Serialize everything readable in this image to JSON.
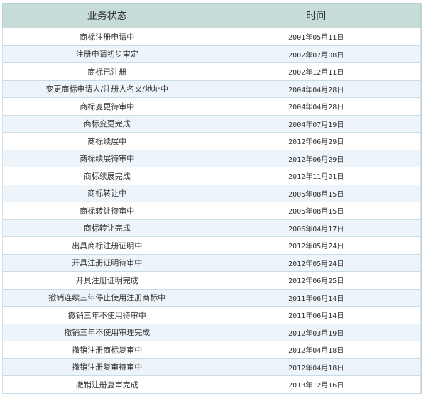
{
  "table": {
    "headers": [
      "业务状态",
      "时间"
    ],
    "rows": [
      {
        "status": "商标注册申请中",
        "date": "2001年05月11日"
      },
      {
        "status": "注册申请初步审定",
        "date": "2002年07月08日"
      },
      {
        "status": "商标已注册",
        "date": "2002年12月11日"
      },
      {
        "status": "变更商标申请人/注册人名义/地址中",
        "date": "2004年04月28日"
      },
      {
        "status": "商标变更待审中",
        "date": "2004年04月28日"
      },
      {
        "status": "商标变更完成",
        "date": "2004年07月19日"
      },
      {
        "status": "商标续展中",
        "date": "2012年06月29日"
      },
      {
        "status": "商标续展待审中",
        "date": "2012年06月29日"
      },
      {
        "status": "商标续展完成",
        "date": "2012年11月21日"
      },
      {
        "status": "商标转让中",
        "date": "2005年08月15日"
      },
      {
        "status": "商标转让待审中",
        "date": "2005年08月15日"
      },
      {
        "status": "商标转让完成",
        "date": "2006年04月17日"
      },
      {
        "status": "出具商标注册证明中",
        "date": "2012年05月24日"
      },
      {
        "status": "开具注册证明待审中",
        "date": "2012年05月24日"
      },
      {
        "status": "开具注册证明完成",
        "date": "2012年06月25日"
      },
      {
        "status": "撤销连续三年停止使用注册商标中",
        "date": "2011年06月14日"
      },
      {
        "status": "撤销三年不使用待审中",
        "date": "2011年06月14日"
      },
      {
        "status": "撤销三年不使用审理完成",
        "date": "2012年03月19日"
      },
      {
        "status": "撤销注册商标复审中",
        "date": "2012年04月18日"
      },
      {
        "status": "撤销注册复审待审中",
        "date": "2012年04月18日"
      },
      {
        "status": "撤销注册复审完成",
        "date": "2013年12月16日"
      }
    ]
  }
}
